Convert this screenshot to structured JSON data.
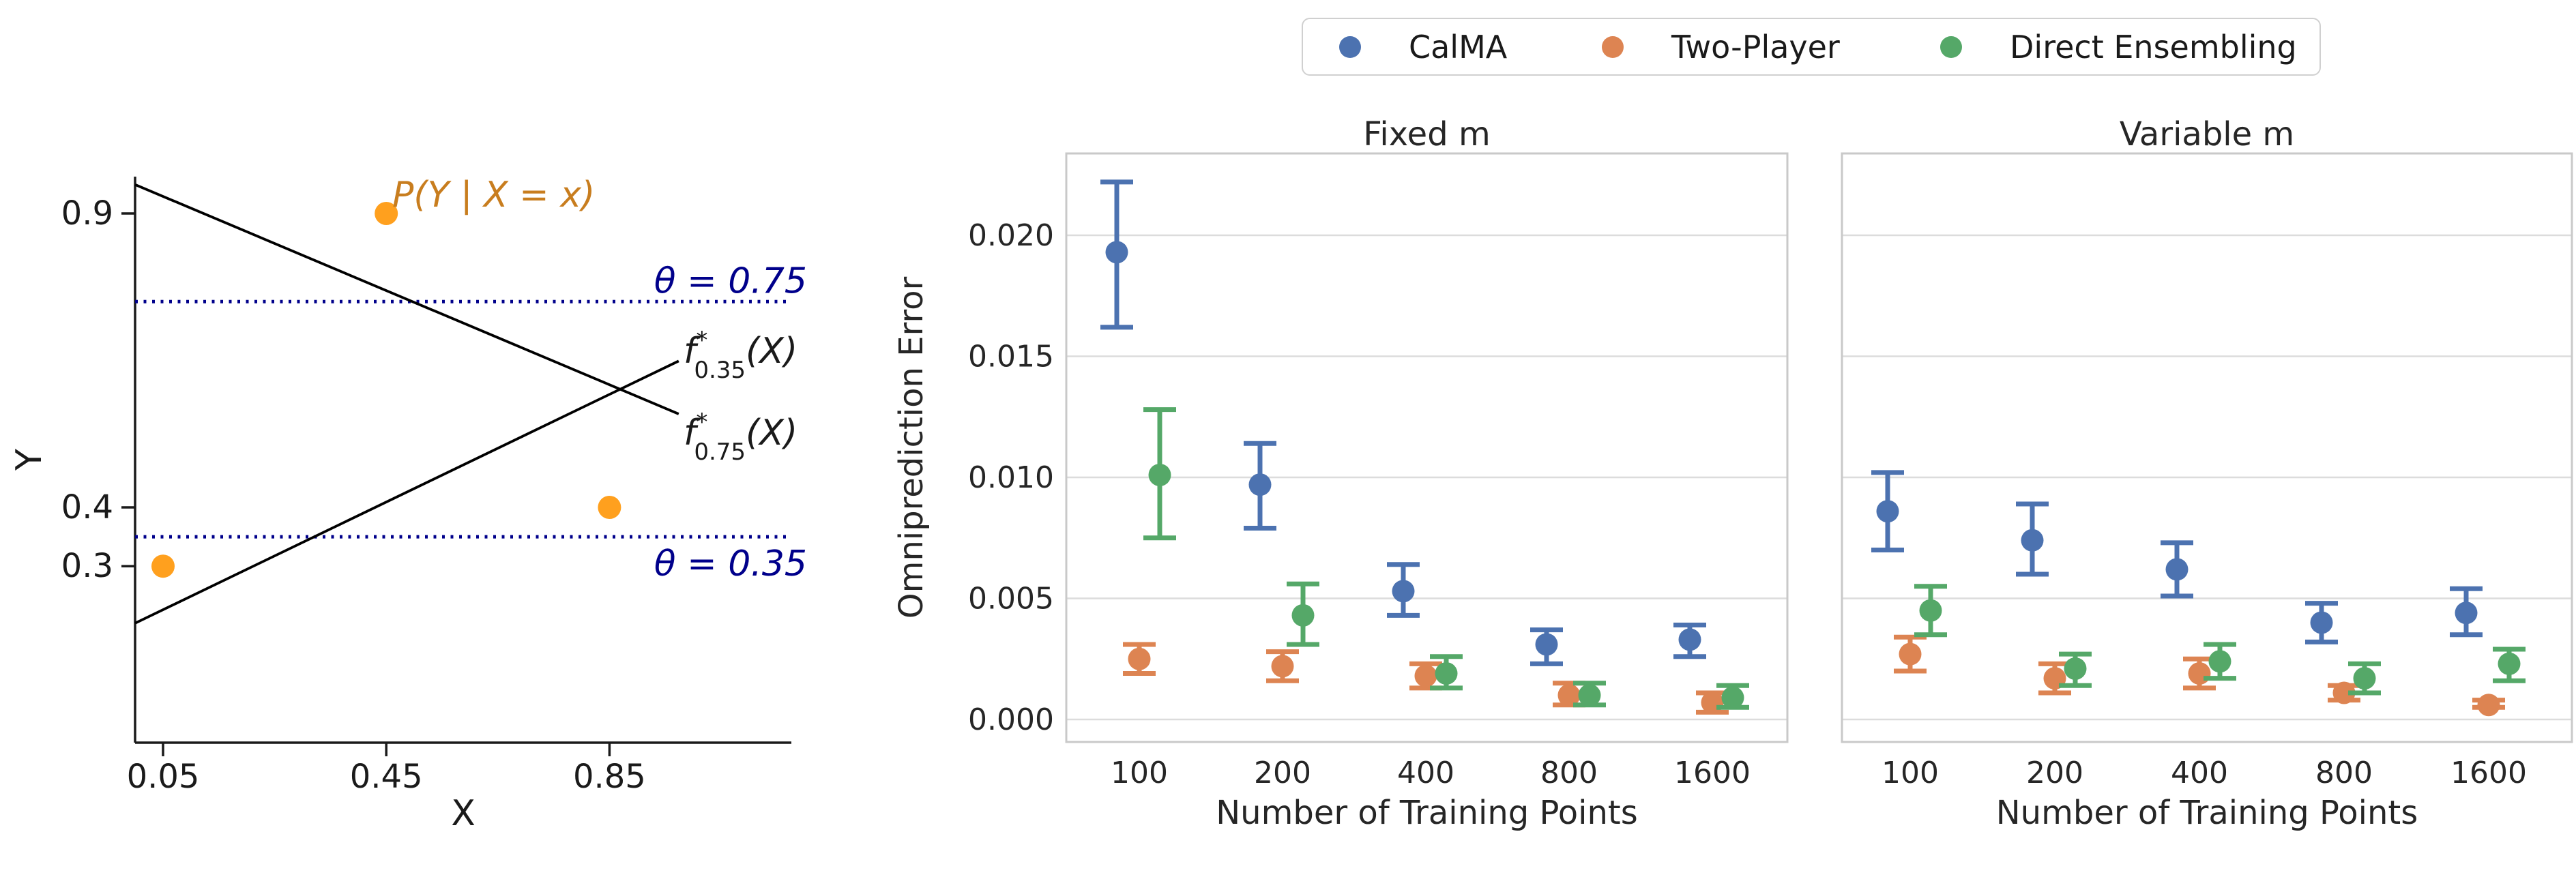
{
  "figure": {
    "background": "#ffffff"
  },
  "legend": {
    "border_color": "#d0d0d0",
    "items": [
      {
        "label": "CalMA",
        "color": "#4C72B0"
      },
      {
        "label": "Two-Player",
        "color": "#DD8452"
      },
      {
        "label": "Direct Ensembling",
        "color": "#55A868"
      }
    ]
  },
  "left_panel": {
    "xlabel": "X",
    "ylabel": "Y",
    "xticks": [
      "0.05",
      "0.45",
      "0.85"
    ],
    "yticks": [
      "0.3",
      "0.4",
      "0.9"
    ],
    "xlim": [
      0,
      1.176
    ],
    "ylim": [
      0,
      0.963
    ],
    "scatter": {
      "label": "P(Y | X = x)",
      "color": "#FFA01E",
      "label_color": "#C87D1E",
      "points": [
        [
          0.05,
          0.3
        ],
        [
          0.45,
          0.9
        ],
        [
          0.85,
          0.4
        ]
      ]
    },
    "line_color": "#000000",
    "function_lines": [
      {
        "name": "f-star-0.35",
        "from": [
          0,
          0.203
        ],
        "to": [
          0.974,
          0.649
        ],
        "label": {
          "base": "f",
          "sup": "*",
          "sub": "0.35",
          "arg": "(X)"
        }
      },
      {
        "name": "f-star-0.75",
        "from": [
          0,
          0.949
        ],
        "to": [
          0.974,
          0.559
        ],
        "label": {
          "base": "f",
          "sup": "*",
          "sub": "0.75",
          "arg": "(X)"
        }
      }
    ],
    "threshold_color": "#00008B",
    "threshold_lines": [
      {
        "y": 0.75,
        "label": "θ = 0.75",
        "label_side": "above"
      },
      {
        "y": 0.35,
        "label": "θ = 0.35",
        "label_side": "below"
      }
    ]
  },
  "chart_data": [
    {
      "type": "scatter",
      "title": "Fixed m",
      "xlabel": "Number of Training Points",
      "ylabel": "Omniprediction Error",
      "categories": [
        "100",
        "200",
        "400",
        "800",
        "1600"
      ],
      "yticks": [
        0.0,
        0.005,
        0.01,
        0.015,
        0.02
      ],
      "ylim": [
        -0.0009,
        0.0234
      ],
      "grid": true,
      "show_ytick_labels": true,
      "legend_position": "top-outside",
      "series": [
        {
          "name": "CalMA",
          "color": "#4C72B0",
          "values": [
            0.0193,
            0.0097,
            0.0053,
            0.0031,
            0.0033
          ],
          "err_lo": [
            0.0162,
            0.0079,
            0.0043,
            0.0023,
            0.0026
          ],
          "err_hi": [
            0.0222,
            0.0114,
            0.0064,
            0.0037,
            0.0039
          ]
        },
        {
          "name": "Two-Player",
          "color": "#DD8452",
          "values": [
            0.0025,
            0.0022,
            0.0018,
            0.001,
            0.0007
          ],
          "err_lo": [
            0.0019,
            0.0016,
            0.0013,
            0.0006,
            0.0003
          ],
          "err_hi": [
            0.0031,
            0.0028,
            0.0023,
            0.0015,
            0.0011
          ]
        },
        {
          "name": "Direct Ensembling",
          "color": "#55A868",
          "values": [
            0.0101,
            0.0043,
            0.0019,
            0.001,
            0.0009
          ],
          "err_lo": [
            0.0075,
            0.0031,
            0.0013,
            0.0006,
            0.0005
          ],
          "err_hi": [
            0.0128,
            0.0056,
            0.0026,
            0.0015,
            0.0014
          ]
        }
      ]
    },
    {
      "type": "scatter",
      "title": "Variable m",
      "xlabel": "Number of Training Points",
      "ylabel": "",
      "categories": [
        "100",
        "200",
        "400",
        "800",
        "1600"
      ],
      "yticks": [
        0.0,
        0.005,
        0.01,
        0.015,
        0.02
      ],
      "ylim": [
        -0.0009,
        0.0234
      ],
      "grid": true,
      "show_ytick_labels": false,
      "series": [
        {
          "name": "CalMA",
          "color": "#4C72B0",
          "values": [
            0.0086,
            0.0074,
            0.0062,
            0.004,
            0.0044
          ],
          "err_lo": [
            0.007,
            0.006,
            0.0051,
            0.0032,
            0.0035
          ],
          "err_hi": [
            0.0102,
            0.0089,
            0.0073,
            0.0048,
            0.0054
          ]
        },
        {
          "name": "Two-Player",
          "color": "#DD8452",
          "values": [
            0.0027,
            0.0017,
            0.0019,
            0.0011,
            0.0006
          ],
          "err_lo": [
            0.002,
            0.0011,
            0.0013,
            0.0008,
            0.0005
          ],
          "err_hi": [
            0.0034,
            0.0023,
            0.0025,
            0.0014,
            0.0008
          ]
        },
        {
          "name": "Direct Ensembling",
          "color": "#55A868",
          "values": [
            0.0045,
            0.0021,
            0.0024,
            0.0017,
            0.0023
          ],
          "err_lo": [
            0.0035,
            0.0014,
            0.0017,
            0.0011,
            0.0016
          ],
          "err_hi": [
            0.0055,
            0.0027,
            0.0031,
            0.0023,
            0.0029
          ]
        }
      ]
    }
  ]
}
